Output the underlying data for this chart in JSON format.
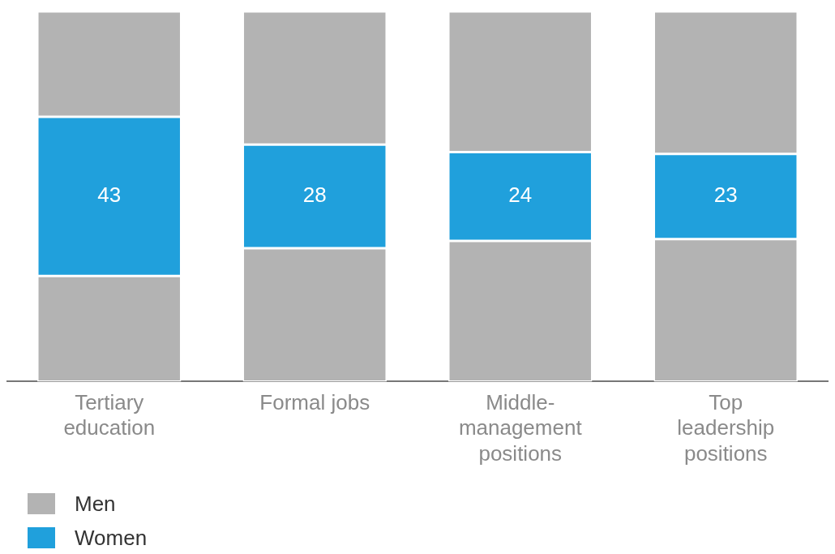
{
  "chart_data": {
    "type": "bar",
    "stacked": true,
    "categories": [
      "Tertiary education",
      "Formal jobs",
      "Middle-management positions",
      "Top leadership positions"
    ],
    "series": [
      {
        "name": "Men",
        "color": "#b3b3b3",
        "values": [
          28.5,
          36,
          38,
          38.5
        ]
      },
      {
        "name": "Women",
        "color": "#20a0dc",
        "values": [
          43,
          28,
          24,
          23
        ],
        "value_labels": [
          "43",
          "28",
          "24",
          "23"
        ]
      },
      {
        "color": "#b3b3b3",
        "values": [
          28.5,
          36,
          38,
          38.5
        ]
      }
    ],
    "ylim": [
      0,
      100
    ],
    "tick_labels": "x",
    "grid": false,
    "legend": "bottom left"
  }
}
